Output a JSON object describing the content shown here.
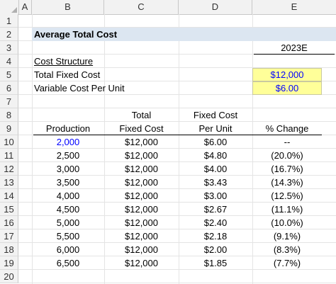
{
  "columns": [
    "A",
    "B",
    "C",
    "D",
    "E"
  ],
  "rows": [
    "1",
    "2",
    "3",
    "4",
    "5",
    "6",
    "7",
    "8",
    "9",
    "10",
    "11",
    "12",
    "13",
    "14",
    "15",
    "16",
    "17",
    "18",
    "19",
    "20"
  ],
  "title": "Average Total Cost",
  "year_label": "2023E",
  "cost_structure_label": "Cost Structure",
  "inputs": {
    "fixed_cost_label": "Total Fixed Cost",
    "fixed_cost_value": "$12,000",
    "variable_cost_label": "Variable Cost Per Unit",
    "variable_cost_value": "$6.00"
  },
  "table_headers": {
    "production": "Production",
    "fixed_cost_top": "Total",
    "fixed_cost_bottom": "Fixed Cost",
    "per_unit_top": "Fixed Cost",
    "per_unit_bottom": "Per Unit",
    "change": "% Change"
  },
  "table_rows": [
    {
      "production": "2,000",
      "fixed": "$12,000",
      "per_unit": "$6.00",
      "change": "--"
    },
    {
      "production": "2,500",
      "fixed": "$12,000",
      "per_unit": "$4.80",
      "change": "(20.0%)"
    },
    {
      "production": "3,000",
      "fixed": "$12,000",
      "per_unit": "$4.00",
      "change": "(16.7%)"
    },
    {
      "production": "3,500",
      "fixed": "$12,000",
      "per_unit": "$3.43",
      "change": "(14.3%)"
    },
    {
      "production": "4,000",
      "fixed": "$12,000",
      "per_unit": "$3.00",
      "change": "(12.5%)"
    },
    {
      "production": "4,500",
      "fixed": "$12,000",
      "per_unit": "$2.67",
      "change": "(11.1%)"
    },
    {
      "production": "5,000",
      "fixed": "$12,000",
      "per_unit": "$2.40",
      "change": "(10.0%)"
    },
    {
      "production": "5,500",
      "fixed": "$12,000",
      "per_unit": "$2.18",
      "change": "(9.1%)"
    },
    {
      "production": "6,000",
      "fixed": "$12,000",
      "per_unit": "$2.00",
      "change": "(8.3%)"
    },
    {
      "production": "6,500",
      "fixed": "$12,000",
      "per_unit": "$1.85",
      "change": "(7.7%)"
    }
  ],
  "colors": {
    "header_band": "#dce6f1",
    "input_fill": "#ffff99",
    "input_text": "#0000ff"
  }
}
